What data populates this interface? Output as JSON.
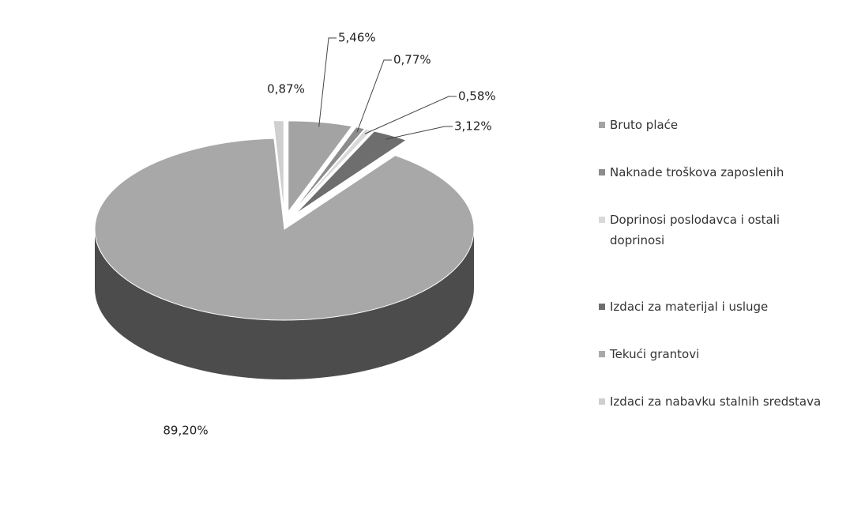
{
  "chart_data": {
    "type": "pie",
    "categories": [
      "Bruto plaće",
      "Naknade troškova zaposlenih",
      "Doprinosi poslodavca i ostali doprinosi",
      "Izdaci za materijal i usluge",
      "Tekući grantovi",
      "Izdaci za nabavku stalnih sredstava"
    ],
    "values": [
      5.46,
      0.77,
      0.58,
      3.12,
      89.2,
      0.87
    ],
    "value_labels": [
      "5,46%",
      "0,77%",
      "0,58%",
      "3,12%",
      "89,20%",
      "0,87%"
    ],
    "colors": [
      "#a3a3a3",
      "#8c8c8c",
      "#d9d9d9",
      "#6e6e6e",
      "#a8a8a8",
      "#cfcfcf"
    ],
    "legend": "right"
  }
}
